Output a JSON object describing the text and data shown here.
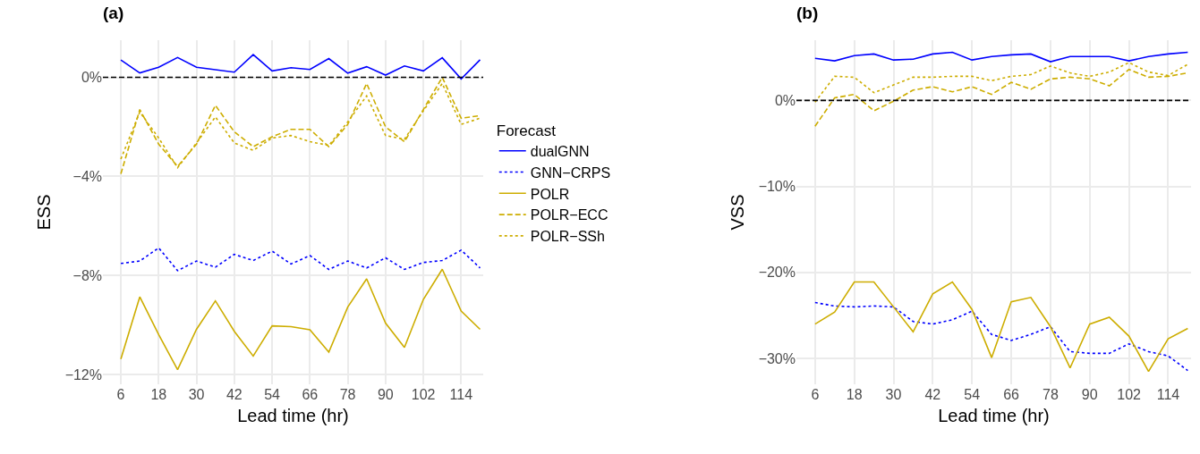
{
  "chart_data": [
    {
      "type": "line",
      "title": "(a)",
      "xlabel": "Lead time (hr)",
      "ylabel": "ESS",
      "legend_title": "Forecast",
      "legend": "right",
      "grid": true,
      "marker": "none",
      "x": [
        6,
        12,
        18,
        24,
        30,
        36,
        42,
        48,
        54,
        60,
        66,
        72,
        78,
        84,
        90,
        96,
        102,
        108,
        114,
        120
      ],
      "xlim": [
        0.3,
        121
      ],
      "xticks": [
        6,
        18,
        30,
        42,
        54,
        66,
        78,
        90,
        102,
        114
      ],
      "ylim": [
        -12.4,
        1.5
      ],
      "yticks": [
        {
          "value": 0,
          "label": "0%"
        },
        {
          "value": -4,
          "label": "−4%"
        },
        {
          "value": -8,
          "label": "−8%"
        },
        {
          "value": -12,
          "label": "−12%"
        }
      ],
      "ref_lines": [
        {
          "axis": "y",
          "value": 0,
          "color": "#000000",
          "line_style": "dashed"
        }
      ],
      "series": [
        {
          "name": "dualGNN",
          "color": "#0000ff",
          "line_style": "solid",
          "values": [
            0.7,
            0.18,
            0.41,
            0.8,
            0.41,
            0.31,
            0.21,
            0.92,
            0.26,
            0.39,
            0.32,
            0.76,
            0.17,
            0.43,
            0.09,
            0.46,
            0.26,
            0.79,
            -0.06,
            0.71
          ]
        },
        {
          "name": "GNN−CRPS",
          "color": "#0000ff",
          "line_style": "dotted",
          "values": [
            -7.52,
            -7.42,
            -6.89,
            -7.81,
            -7.42,
            -7.67,
            -7.15,
            -7.4,
            -7.02,
            -7.54,
            -7.2,
            -7.76,
            -7.42,
            -7.7,
            -7.29,
            -7.76,
            -7.48,
            -7.4,
            -6.98,
            -7.7
          ]
        },
        {
          "name": "POLR",
          "color": "#cdad00",
          "line_style": "solid",
          "values": [
            -11.38,
            -8.87,
            -10.39,
            -11.81,
            -10.18,
            -9.03,
            -10.26,
            -11.26,
            -10.04,
            -10.07,
            -10.2,
            -11.1,
            -9.28,
            -8.14,
            -9.93,
            -10.91,
            -8.97,
            -7.75,
            -9.44,
            -10.18
          ]
        },
        {
          "name": "POLR−ECC",
          "color": "#cdad00",
          "line_style": "dashed",
          "values": [
            -3.9,
            -1.3,
            -2.7,
            -3.6,
            -2.7,
            -1.13,
            -2.2,
            -2.8,
            -2.4,
            -2.1,
            -2.1,
            -2.8,
            -1.9,
            -0.25,
            -2.0,
            -2.6,
            -1.3,
            0,
            -1.65,
            -1.55
          ]
        },
        {
          "name": "POLR−SSh",
          "color": "#cdad00",
          "line_style": "dotted",
          "values": [
            -3.3,
            -1.4,
            -2.45,
            -3.65,
            -2.65,
            -1.6,
            -2.65,
            -2.95,
            -2.45,
            -2.35,
            -2.6,
            -2.75,
            -1.8,
            -0.75,
            -2.35,
            -2.5,
            -1.35,
            -0.25,
            -1.9,
            -1.65
          ]
        }
      ]
    },
    {
      "type": "line",
      "title": "(b)",
      "xlabel": "Lead time (hr)",
      "ylabel": "VSS",
      "legend": false,
      "grid": true,
      "marker": "none",
      "x": [
        6,
        12,
        18,
        24,
        30,
        36,
        42,
        48,
        54,
        60,
        66,
        72,
        78,
        84,
        90,
        96,
        102,
        108,
        114,
        120
      ],
      "xlim": [
        0.3,
        121
      ],
      "xticks": [
        6,
        18,
        30,
        42,
        54,
        66,
        78,
        90,
        102,
        114
      ],
      "ylim": [
        -33,
        7
      ],
      "yticks": [
        {
          "value": 0,
          "label": "0%"
        },
        {
          "value": -10,
          "label": "−10%"
        },
        {
          "value": -20,
          "label": "−20%"
        },
        {
          "value": -30,
          "label": "−30%"
        }
      ],
      "ref_lines": [
        {
          "axis": "y",
          "value": 0,
          "color": "#000000",
          "line_style": "dashed"
        }
      ],
      "series": [
        {
          "color": "#0000ff",
          "line_style": "solid",
          "values": [
            4.9,
            4.6,
            5.2,
            5.4,
            4.7,
            4.8,
            5.4,
            5.6,
            4.7,
            5.1,
            5.3,
            5.4,
            4.5,
            5.1,
            5.1,
            5.1,
            4.6,
            5.1,
            5.4,
            5.6
          ]
        },
        {
          "color": "#0000ff",
          "line_style": "dotted",
          "values": [
            -23.5,
            -23.9,
            -24.0,
            -23.9,
            -24.0,
            -25.7,
            -26.0,
            -25.5,
            -24.5,
            -27.2,
            -27.9,
            -27.2,
            -26.3,
            -29.2,
            -29.4,
            -29.4,
            -28.3,
            -29.2,
            -29.7,
            -31.4
          ]
        },
        {
          "color": "#cdad00",
          "line_style": "solid",
          "values": [
            -26.0,
            -24.6,
            -21.1,
            -21.1,
            -24.0,
            -26.9,
            -22.5,
            -21.1,
            -24.3,
            -29.9,
            -23.4,
            -22.9,
            -26.3,
            -31.1,
            -26.0,
            -25.2,
            -27.4,
            -31.5,
            -27.7,
            -26.5
          ]
        },
        {
          "color": "#cdad00",
          "line_style": "dashed",
          "values": [
            -3.0,
            0.3,
            0.7,
            -1.2,
            -0.1,
            1.2,
            1.6,
            1.0,
            1.6,
            0.7,
            2.1,
            1.3,
            2.5,
            2.7,
            2.5,
            1.7,
            3.6,
            2.7,
            2.8,
            3.2
          ]
        },
        {
          "color": "#cdad00",
          "line_style": "dotted",
          "values": [
            -0.2,
            2.8,
            2.7,
            0.9,
            1.8,
            2.7,
            2.7,
            2.8,
            2.8,
            2.3,
            2.8,
            3.0,
            4.0,
            3.2,
            2.8,
            3.3,
            4.4,
            3.3,
            2.9,
            4.2
          ]
        }
      ]
    }
  ]
}
